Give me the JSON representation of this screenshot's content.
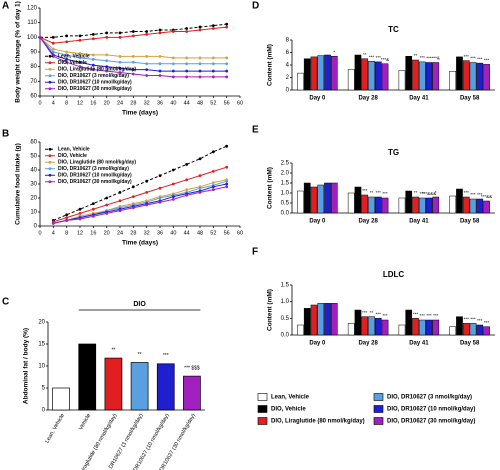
{
  "chart_data": [
    {
      "type": "line",
      "label": "A",
      "y_label": "Body weight change (% of day 1)",
      "x_label": "Time (days)",
      "x": [
        0,
        4,
        8,
        12,
        16,
        20,
        24,
        28,
        32,
        36,
        40,
        44,
        48,
        52,
        56
      ],
      "xlim": [
        0,
        60
      ],
      "xticks": [
        0,
        4,
        8,
        12,
        16,
        20,
        24,
        28,
        32,
        36,
        40,
        44,
        48,
        52,
        56,
        60
      ],
      "ylim": [
        60,
        120
      ],
      "yticks": [
        60,
        70,
        80,
        90,
        100,
        110,
        120
      ],
      "legend": "lower left",
      "series": [
        {
          "name": "Lean, Vehicle",
          "color": "#000000",
          "dashed": true,
          "values": [
            100,
            100,
            101,
            101,
            102,
            103,
            103,
            104,
            104,
            105,
            105,
            106,
            107,
            108,
            109
          ]
        },
        {
          "name": "DIO, Vehicle",
          "color": "#e02020",
          "values": [
            100,
            96,
            97,
            98,
            99,
            100,
            100,
            101,
            102,
            103,
            104,
            104,
            105,
            106,
            107
          ]
        },
        {
          "name": "DIO, Liraglutide (80 nmol/kg/day)",
          "color": "#d9a040",
          "values": [
            100,
            92,
            90,
            89,
            88,
            88,
            87,
            87,
            87,
            87,
            86,
            86,
            86,
            86,
            86
          ]
        },
        {
          "name": "DIO, DR10627 (3 nmol/kg/day)",
          "color": "#5aa0e0",
          "values": [
            100,
            90,
            88,
            86,
            85,
            84,
            83,
            83,
            82,
            82,
            82,
            82,
            82,
            82,
            82
          ]
        },
        {
          "name": "DIO, DR10627 (10 nmol/kg/day)",
          "color": "#1f1fd0",
          "values": [
            100,
            88,
            85,
            83,
            81,
            80,
            79,
            78,
            78,
            77,
            77,
            77,
            77,
            77,
            77
          ]
        },
        {
          "name": "DIO, DR10627 (30 nmol/kg/day)",
          "color": "#a020c0",
          "values": [
            100,
            87,
            83,
            80,
            78,
            77,
            76,
            75,
            74,
            74,
            73,
            73,
            73,
            73,
            73
          ]
        }
      ]
    },
    {
      "type": "line",
      "label": "B",
      "y_label": "Cumulative food intake (g)",
      "x_label": "Time (days)",
      "x": [
        4,
        8,
        12,
        16,
        20,
        24,
        28,
        32,
        36,
        40,
        44,
        48,
        52,
        56
      ],
      "xlim": [
        0,
        60
      ],
      "xticks": [
        0,
        4,
        8,
        12,
        16,
        20,
        24,
        28,
        32,
        36,
        40,
        44,
        48,
        52,
        56,
        60
      ],
      "ylim": [
        0,
        60
      ],
      "yticks": [
        0,
        10,
        20,
        30,
        40,
        50,
        60
      ],
      "legend": "upper left",
      "series": [
        {
          "name": "Lean, Vehicle",
          "color": "#000000",
          "dashed": true,
          "values": [
            4,
            8,
            12,
            16,
            20,
            24,
            28,
            32,
            36,
            40,
            44,
            48,
            53,
            57
          ]
        },
        {
          "name": "DIO, Vehicle",
          "color": "#e02020",
          "values": [
            3,
            6,
            9,
            12,
            15,
            18,
            21,
            24,
            27,
            30,
            33,
            36,
            39,
            42
          ]
        },
        {
          "name": "DIO, Liraglutide (80 nmol/kg/day)",
          "color": "#d9a040",
          "values": [
            2,
            4,
            7,
            9,
            11,
            14,
            16,
            18,
            21,
            23,
            26,
            28,
            31,
            33
          ]
        },
        {
          "name": "DIO, DR10627 (3 nmol/kg/day)",
          "color": "#5aa0e0",
          "values": [
            2,
            4,
            6,
            8,
            11,
            13,
            15,
            17,
            20,
            22,
            24,
            27,
            29,
            32
          ]
        },
        {
          "name": "DIO, DR10627 (10 nmol/kg/day)",
          "color": "#1f1fd0",
          "values": [
            2,
            4,
            6,
            8,
            10,
            12,
            14,
            16,
            18,
            21,
            23,
            25,
            28,
            30
          ]
        },
        {
          "name": "DIO, DR10627 (30 nmol/kg/day)",
          "color": "#a020c0",
          "values": [
            2,
            4,
            5,
            7,
            9,
            11,
            13,
            15,
            17,
            19,
            22,
            24,
            26,
            28
          ]
        }
      ]
    },
    {
      "type": "bar",
      "label": "C",
      "y_label": "Abdominal fat / body (%)",
      "group_label": "DIO",
      "categories": [
        "Lean, Vehicle",
        "Vehicle",
        "Liraglutide (80 nmol/kg/day)",
        "DR10627 (3 nmol/kg/day)",
        "DR10627 (10 nmol/kg/day)",
        "DR10627 (30 nmol/kg/day)"
      ],
      "values": [
        5,
        15,
        11.8,
        10.8,
        10.5,
        7.7
      ],
      "colors": [
        "#ffffff",
        "#000000",
        "#e02020",
        "#5aa0e0",
        "#1f1fd0",
        "#a020c0"
      ],
      "annotations": [
        null,
        null,
        "**",
        "**",
        "***",
        "*** $$$"
      ],
      "ylim": [
        0,
        20
      ],
      "yticks": [
        0,
        5,
        10,
        15,
        20
      ]
    },
    {
      "type": "grouped_bar",
      "label": "D",
      "title": "TC",
      "y_label": "Content (mM)",
      "categories": [
        "Day 0",
        "Day 28",
        "Day 41",
        "Day 58"
      ],
      "ylim": [
        0,
        8
      ],
      "yticks": [
        0,
        2,
        4,
        6,
        8
      ],
      "series": [
        {
          "name": "Lean, Vehicle",
          "color": "#ffffff",
          "values": [
            2.7,
            3.3,
            3.1,
            3.0
          ],
          "sig": [
            null,
            null,
            null,
            null
          ]
        },
        {
          "name": "DIO, Vehicle",
          "color": "#000000",
          "values": [
            5.0,
            5.6,
            5.4,
            5.3
          ],
          "sig": [
            null,
            null,
            null,
            null
          ]
        },
        {
          "name": "DIO, Liraglutide (80 nmol/kg/day)",
          "color": "#e02020",
          "values": [
            5.3,
            5.0,
            4.8,
            4.7
          ],
          "sig": [
            null,
            "**",
            "**",
            "***"
          ]
        },
        {
          "name": "DIO, DR10627 (3 nmol/kg/day)",
          "color": "#5aa0e0",
          "values": [
            5.5,
            4.6,
            4.5,
            4.4
          ],
          "sig": [
            null,
            "***",
            "***",
            "***"
          ]
        },
        {
          "name": "DIO, DR10627 (10 nmol/kg/day)",
          "color": "#1f1fd0",
          "values": [
            5.6,
            4.5,
            4.4,
            4.3
          ],
          "sig": [
            null,
            "***",
            "***",
            "***"
          ]
        },
        {
          "name": "DIO, DR10627 (30 nmol/kg/day)",
          "color": "#a020c0",
          "values": [
            5.4,
            4.2,
            4.4,
            4.1
          ],
          "sig": [
            "*",
            "***&",
            "***&",
            "***"
          ]
        }
      ]
    },
    {
      "type": "grouped_bar",
      "label": "E",
      "title": "TG",
      "y_label": "Content (mM)",
      "categories": [
        "Day 0",
        "Day 28",
        "Day 41",
        "Day 58"
      ],
      "ylim": [
        0,
        2.5
      ],
      "yticks": [
        {
          "value": 0,
          "label": "0.0"
        },
        0.5,
        {
          "value": 1,
          "label": "1.0"
        },
        1.5,
        {
          "value": 2,
          "label": "2.0"
        },
        2.5
      ],
      "series": [
        {
          "color": "#ffffff",
          "values": [
            1.1,
            1.0,
            0.75,
            0.85
          ],
          "sig": [
            null,
            null,
            null,
            null
          ]
        },
        {
          "color": "#000000",
          "values": [
            1.5,
            1.3,
            1.1,
            1.2
          ],
          "sig": [
            null,
            null,
            null,
            null
          ]
        },
        {
          "color": "#e02020",
          "values": [
            1.3,
            0.9,
            0.8,
            0.8
          ],
          "sig": [
            null,
            "***",
            "**",
            "***"
          ]
        },
        {
          "color": "#5aa0e0",
          "values": [
            1.4,
            0.8,
            0.75,
            0.7
          ],
          "sig": [
            null,
            "**",
            "***",
            "***"
          ]
        },
        {
          "color": "#1f1fd0",
          "values": [
            1.5,
            0.8,
            0.75,
            0.7
          ],
          "sig": [
            null,
            "***",
            "***&&&",
            "***"
          ]
        },
        {
          "color": "#a020c0",
          "values": [
            1.5,
            0.75,
            0.8,
            0.6
          ],
          "sig": [
            null,
            "***",
            "*",
            "***&&"
          ]
        }
      ]
    },
    {
      "type": "grouped_bar",
      "label": "F",
      "title": "LDLC",
      "y_label": "Content (mM)",
      "categories": [
        "Day 0",
        "Day 28",
        "Day 41",
        "Day 58"
      ],
      "ylim": [
        0,
        1.5
      ],
      "yticks": [
        {
          "value": 0,
          "label": "0.0"
        },
        0.5,
        {
          "value": 1,
          "label": "1.0"
        },
        1.5
      ],
      "series": [
        {
          "color": "#ffffff",
          "values": [
            0.3,
            0.35,
            0.3,
            0.25
          ],
          "sig": [
            null,
            null,
            null,
            null
          ]
        },
        {
          "color": "#000000",
          "values": [
            0.8,
            0.75,
            0.75,
            0.55
          ],
          "sig": [
            null,
            null,
            null,
            null
          ]
        },
        {
          "color": "#e02020",
          "values": [
            0.9,
            0.55,
            0.5,
            0.35
          ],
          "sig": [
            null,
            "***",
            "***",
            "***"
          ]
        },
        {
          "color": "#5aa0e0",
          "values": [
            0.95,
            0.55,
            0.45,
            0.35
          ],
          "sig": [
            null,
            "**",
            "***",
            "***"
          ]
        },
        {
          "color": "#1f1fd0",
          "values": [
            0.95,
            0.5,
            0.45,
            0.3
          ],
          "sig": [
            null,
            "***",
            "***",
            "***"
          ]
        },
        {
          "color": "#a020c0",
          "values": [
            0.95,
            0.45,
            0.45,
            0.25
          ],
          "sig": [
            null,
            "***",
            "***",
            "***"
          ]
        }
      ]
    }
  ]
}
